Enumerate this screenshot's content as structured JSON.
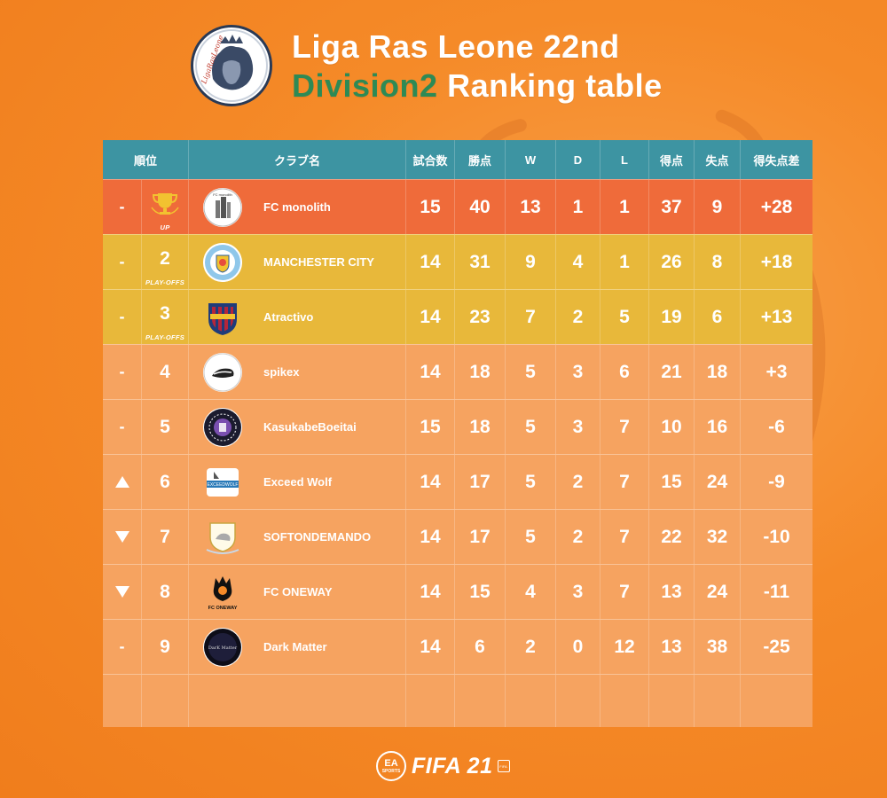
{
  "header": {
    "title_line1": "Liga Ras Leone 22nd",
    "title_line2_accent": "Division2",
    "title_line2_rest": " Ranking table",
    "logo_text": "LigaRasLeone"
  },
  "table": {
    "columns": [
      "順位",
      "クラブ名",
      "試合数",
      "勝点",
      "W",
      "D",
      "L",
      "得点",
      "失点",
      "得失点差"
    ],
    "rows": [
      {
        "move": "-",
        "rank": "",
        "rank_label": "UP",
        "club": "FC monolith",
        "played": "15",
        "points": "40",
        "w": "13",
        "d": "1",
        "l": "1",
        "gf": "37",
        "ga": "9",
        "gd": "+28"
      },
      {
        "move": "-",
        "rank": "2",
        "rank_label": "PLAY-OFFS",
        "club": "MANCHESTER CITY",
        "played": "14",
        "points": "31",
        "w": "9",
        "d": "4",
        "l": "1",
        "gf": "26",
        "ga": "8",
        "gd": "+18"
      },
      {
        "move": "-",
        "rank": "3",
        "rank_label": "PLAY-OFFS",
        "club": "Atractivo",
        "played": "14",
        "points": "23",
        "w": "7",
        "d": "2",
        "l": "5",
        "gf": "19",
        "ga": "6",
        "gd": "+13"
      },
      {
        "move": "-",
        "rank": "4",
        "rank_label": "",
        "club": "spikex",
        "played": "14",
        "points": "18",
        "w": "5",
        "d": "3",
        "l": "6",
        "gf": "21",
        "ga": "18",
        "gd": "+3"
      },
      {
        "move": "-",
        "rank": "5",
        "rank_label": "",
        "club": "KasukabeBoeitai",
        "played": "15",
        "points": "18",
        "w": "5",
        "d": "3",
        "l": "7",
        "gf": "10",
        "ga": "16",
        "gd": "-6"
      },
      {
        "move": "up",
        "rank": "6",
        "rank_label": "",
        "club": "Exceed Wolf",
        "played": "14",
        "points": "17",
        "w": "5",
        "d": "2",
        "l": "7",
        "gf": "15",
        "ga": "24",
        "gd": "-9"
      },
      {
        "move": "down",
        "rank": "7",
        "rank_label": "",
        "club": "SOFTONDEMANDO",
        "played": "14",
        "points": "17",
        "w": "5",
        "d": "2",
        "l": "7",
        "gf": "22",
        "ga": "32",
        "gd": "-10"
      },
      {
        "move": "down",
        "rank": "8",
        "rank_label": "",
        "club": "FC ONEWAY",
        "played": "14",
        "points": "15",
        "w": "4",
        "d": "3",
        "l": "7",
        "gf": "13",
        "ga": "24",
        "gd": "-11"
      },
      {
        "move": "-",
        "rank": "9",
        "rank_label": "",
        "club": "Dark Matter",
        "played": "14",
        "points": "6",
        "w": "2",
        "d": "0",
        "l": "12",
        "gf": "13",
        "ga": "38",
        "gd": "-25"
      }
    ]
  },
  "club_logo_text": {
    "monolith": "FC monolith",
    "exceed": "EXCEEDWOLF",
    "oneway": "FC ONEWAY",
    "dark": "DarK Matter"
  },
  "footer": {
    "ea_line1": "EA",
    "ea_line2": "SPORTS",
    "game": "FIFA 21",
    "badge": "FIFA"
  },
  "colors": {
    "background": "#f58a28",
    "header_row": "#3d94a2",
    "first_row": "#ef6b3a",
    "playoff_row": "#e8b83a",
    "normal_row": "#f6a360",
    "accent_green": "#2e8a55"
  }
}
